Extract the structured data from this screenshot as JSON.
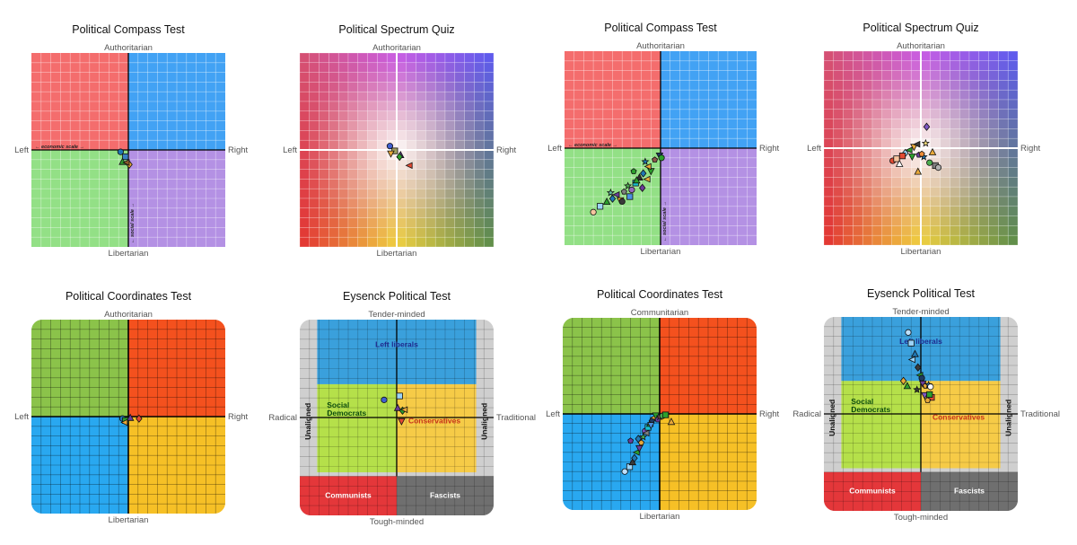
{
  "chart_data": [
    {
      "type": "scatter",
      "title": "Political Compass Test",
      "axis_labels": {
        "top": "Authoritarian",
        "bottom": "Libertarian",
        "left": "Left",
        "right": "Right"
      },
      "scale_labels": {
        "x": "← economic scale →",
        "y": "← social scale →"
      },
      "xlim": [
        -10,
        10
      ],
      "ylim": [
        -10,
        10
      ],
      "quadrant_colors": [
        "#f46d6d",
        "#42a2f4",
        "#93e086",
        "#b491e4"
      ],
      "x": [
        -0.8,
        -0.3,
        -0.6,
        0.1,
        -0.2
      ],
      "y": [
        -0.2,
        -0.7,
        -1.2,
        -1.5,
        -1.3
      ],
      "colors": [
        "#1f77b4",
        "#3a7fc0",
        "#2ca02c",
        "#e8a838",
        "#8a5a2b"
      ]
    },
    {
      "type": "scatter",
      "title": "Political Spectrum Quiz",
      "axis_labels": {
        "top": "Authoritarian",
        "bottom": "Libertarian",
        "left": "Left",
        "right": "Right"
      },
      "xlim": [
        -10,
        10
      ],
      "ylim": [
        -10,
        10
      ],
      "x": [
        -0.7,
        -0.2,
        0.4,
        0.3,
        1.3,
        -0.6
      ],
      "y": [
        0.4,
        -0.1,
        -0.5,
        -0.7,
        -1.6,
        -0.4
      ],
      "colors": [
        "#4060d0",
        "#a0a060",
        "#6a3d9a",
        "#2ca02c",
        "#e34a33",
        "#e8a838"
      ]
    },
    {
      "type": "scatter",
      "title": "Political Compass Test",
      "axis_labels": {
        "top": "Authoritarian",
        "bottom": "Libertarian",
        "left": "Left",
        "right": "Right"
      },
      "scale_labels": {
        "x": "← economic scale →",
        "y": "← social scale →"
      },
      "xlim": [
        -10,
        10
      ],
      "ylim": [
        -10,
        10
      ],
      "quadrant_colors": [
        "#f46d6d",
        "#42a2f4",
        "#93e086",
        "#b491e4"
      ],
      "x": [
        -7.0,
        -6.3,
        -5.6,
        -5.0,
        -4.6,
        -4.2,
        -3.8,
        -3.4,
        -3.0,
        -2.6,
        -2.2,
        -1.8,
        -1.4,
        -1.0,
        -0.6,
        -5.2,
        -4.0,
        -3.2,
        -2.5,
        -1.9,
        -1.3,
        -0.1,
        -2.8,
        -1.6,
        0.1
      ],
      "y": [
        -6.6,
        -6.0,
        -5.5,
        -5.2,
        -4.8,
        -5.4,
        -4.5,
        -3.9,
        -4.3,
        -3.6,
        -3.0,
        -2.6,
        -3.2,
        -2.4,
        -1.2,
        -4.6,
        -5.5,
        -5.0,
        -3.3,
        -4.1,
        -1.9,
        -0.8,
        -2.4,
        -1.4,
        -1.0
      ],
      "colors": [
        "#f7c59f",
        "#9bd3f7",
        "#2ca02c",
        "#1f77b4",
        "#6a3d9a",
        "#e8a838",
        "#7f7f7f",
        "#4caf50",
        "#9467bd",
        "#17becf",
        "#2c2c2c",
        "#1f77b4",
        "#e8a838",
        "#2ca02c",
        "#8c564b",
        "#66c2a5",
        "#3a3a3a",
        "#4a90e2",
        "#2ca02c",
        "#6a3d9a",
        "#e8a838",
        "#1f3a60",
        "#2ca02c",
        "#1f77b4",
        "#2ca02c"
      ]
    },
    {
      "type": "scatter",
      "title": "Political Spectrum Quiz",
      "axis_labels": {
        "top": "Authoritarian",
        "bottom": "Libertarian",
        "left": "Left",
        "right": "Right"
      },
      "xlim": [
        -10,
        10
      ],
      "ylim": [
        -10,
        10
      ],
      "x": [
        -2.9,
        -2.5,
        -2.2,
        -1.6,
        -1.2,
        -0.7,
        -0.2,
        0.3,
        0.9,
        1.5,
        1.2,
        0.6,
        -0.4,
        -0.9,
        0.1,
        0.5,
        1.8,
        -1.9,
        -0.3
      ],
      "y": [
        -1.3,
        -1.1,
        -1.6,
        -0.5,
        -0.2,
        0.1,
        -0.7,
        -0.9,
        -1.5,
        -1.8,
        -0.4,
        2.2,
        0.4,
        -0.9,
        -0.6,
        0.5,
        -2.0,
        -0.8,
        -2.4
      ],
      "colors": [
        "#e34a33",
        "#f7c59f",
        "#ffffff",
        "#9bd3f7",
        "#2ca02c",
        "#e8a838",
        "#6a3d9a",
        "#1f77b4",
        "#4caf50",
        "#7f7f7f",
        "#e8a838",
        "#7e57c2",
        "#3a3a3a",
        "#2ca02c",
        "#ef8c35",
        "#f7e07a",
        "#b0b0b0",
        "#e34a33",
        "#e8a838"
      ]
    },
    {
      "type": "scatter",
      "title": "Political Coordinates Test",
      "axis_labels": {
        "top": "Authoritarian",
        "bottom": "Libertarian",
        "left": "Left",
        "right": "Right"
      },
      "xlim": [
        -100,
        100
      ],
      "ylim": [
        -100,
        100
      ],
      "quadrant_colors": [
        "#8bc34a",
        "#f4511e",
        "#29a8f0",
        "#f6c026"
      ],
      "x": [
        -6,
        -3,
        2,
        11,
        -4
      ],
      "y": [
        -2,
        -4,
        -1,
        -2,
        -6
      ],
      "colors": [
        "#1f77b4",
        "#2ca02c",
        "#6a3d9a",
        "#e34a33",
        "#e8a838"
      ]
    },
    {
      "type": "scatter",
      "title": "Eysenck Political Test",
      "axis_labels": {
        "top": "Tender-minded",
        "bottom": "Tough-minded",
        "left": "Radical",
        "right": "Traditional"
      },
      "xlim": [
        -100,
        100
      ],
      "ylim": [
        -100,
        100
      ],
      "regions": [
        "Left liberals",
        "Social Democrats",
        "Conservatives",
        "Communists",
        "Fascists",
        "Unaligned"
      ],
      "x": [
        -13,
        3,
        1,
        6,
        8,
        5
      ],
      "y": [
        18,
        22,
        10,
        7,
        8,
        -4
      ],
      "colors": [
        "#4060d0",
        "#9bd3f7",
        "#6a3d9a",
        "#2ca02c",
        "#e8a838",
        "#e34a33"
      ]
    },
    {
      "type": "scatter",
      "title": "Political Coordinates Test",
      "axis_labels": {
        "top": "Communitarian",
        "bottom": "Libertarian",
        "left": "Left",
        "right": "Right"
      },
      "xlim": [
        -100,
        100
      ],
      "ylim": [
        -100,
        100
      ],
      "quadrant_colors": [
        "#8bc34a",
        "#f4511e",
        "#29a8f0",
        "#f6c026"
      ],
      "x": [
        -36,
        -31,
        -28,
        -26,
        -24,
        -21,
        -19,
        -17,
        -15,
        -12,
        -10,
        -8,
        -6,
        -4,
        -2,
        0,
        3,
        6,
        12,
        -22,
        -14,
        -9,
        -30
      ],
      "y": [
        -60,
        -55,
        -50,
        -46,
        -40,
        -36,
        -30,
        -24,
        -18,
        -14,
        -10,
        -7,
        -4,
        -2,
        -6,
        -3,
        -2,
        -1,
        -8,
        -26,
        -20,
        -12,
        -28
      ],
      "colors": [
        "#bde0ff",
        "#9bd3f7",
        "#3a3a3a",
        "#1f77b4",
        "#2ca02c",
        "#6a3d9a",
        "#e8a838",
        "#4caf50",
        "#7e57c2",
        "#17becf",
        "#2ca02c",
        "#1f3a60",
        "#e8a838",
        "#2ca02c",
        "#6a3d9a",
        "#8c564b",
        "#4caf50",
        "#2ca02c",
        "#e8a838",
        "#1f77b4",
        "#7f7f7f",
        "#4a90e2",
        "#6a3d9a"
      ]
    },
    {
      "type": "scatter",
      "title": "Eysenck Political Test",
      "axis_labels": {
        "top": "Tender-minded",
        "bottom": "Tough-minded",
        "left": "Radical",
        "right": "Traditional"
      },
      "xlim": [
        -100,
        100
      ],
      "ylim": [
        -100,
        100
      ],
      "regions": [
        "Left liberals",
        "Social Democrats",
        "Conservatives",
        "Communists",
        "Fascists",
        "Unaligned"
      ],
      "x": [
        -13,
        -10,
        -6,
        -3,
        -1,
        2,
        5,
        8,
        10,
        11,
        -14,
        -18,
        -9,
        4,
        7,
        -4,
        1,
        9
      ],
      "y": [
        84,
        73,
        62,
        48,
        40,
        31,
        29,
        30,
        28,
        17,
        29,
        34,
        56,
        19,
        14,
        25,
        37,
        20
      ],
      "colors": [
        "#bde0ff",
        "#9bd3f7",
        "#1f77b4",
        "#3a3a3a",
        "#2ca02c",
        "#6a3d9a",
        "#e8a838",
        "#1f77b4",
        "#ffffff",
        "#e34a33",
        "#2ca02c",
        "#e8a838",
        "#9bd3f7",
        "#7e57c2",
        "#e8a838",
        "#3a3a3a",
        "#1f3a60",
        "#2ca02c"
      ]
    }
  ]
}
